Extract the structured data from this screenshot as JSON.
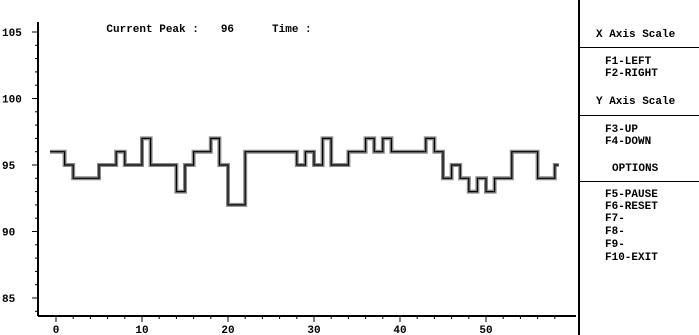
{
  "header": {
    "peak_label": "Current Peak :",
    "peak_value": "96",
    "time_label": "Time :"
  },
  "sidebar": {
    "x_axis_title": "X Axis Scale",
    "x_items": [
      "F1-LEFT",
      "F2-RIGHT"
    ],
    "y_axis_title": "Y Axis Scale",
    "y_items": [
      "F3-UP",
      "F4-DOWN"
    ],
    "options_title": "OPTIONS",
    "option_items": [
      "F5-PAUSE",
      "F6-RESET",
      "F7-",
      "F8-",
      "F9-",
      "F10-EXIT"
    ]
  },
  "chart_data": {
    "type": "line",
    "step": true,
    "title": "",
    "xlabel": "",
    "ylabel": "",
    "xlim": [
      -1.5,
      58.5
    ],
    "ylim": [
      84,
      105.5
    ],
    "xticks": [
      0,
      10,
      20,
      30,
      40,
      50
    ],
    "yticks": [
      85,
      90,
      95,
      100,
      105
    ],
    "grid": false,
    "series": [
      {
        "values": [
          {
            "x": 0,
            "y": 96
          },
          {
            "x": 1,
            "y": 95
          },
          {
            "x": 2,
            "y": 94
          },
          {
            "x": 5,
            "y": 95
          },
          {
            "x": 7,
            "y": 96
          },
          {
            "x": 8,
            "y": 95
          },
          {
            "x": 10,
            "y": 97
          },
          {
            "x": 11,
            "y": 95
          },
          {
            "x": 14,
            "y": 93
          },
          {
            "x": 15,
            "y": 95
          },
          {
            "x": 16,
            "y": 96
          },
          {
            "x": 18,
            "y": 97
          },
          {
            "x": 19,
            "y": 95
          },
          {
            "x": 20,
            "y": 92
          },
          {
            "x": 22,
            "y": 96
          },
          {
            "x": 28,
            "y": 95
          },
          {
            "x": 29,
            "y": 96
          },
          {
            "x": 30,
            "y": 95
          },
          {
            "x": 31,
            "y": 97
          },
          {
            "x": 32,
            "y": 95
          },
          {
            "x": 34,
            "y": 96
          },
          {
            "x": 36,
            "y": 97
          },
          {
            "x": 37,
            "y": 96
          },
          {
            "x": 38,
            "y": 97
          },
          {
            "x": 39,
            "y": 96
          },
          {
            "x": 43,
            "y": 97
          },
          {
            "x": 44,
            "y": 96
          },
          {
            "x": 45,
            "y": 94
          },
          {
            "x": 46,
            "y": 95
          },
          {
            "x": 47,
            "y": 94
          },
          {
            "x": 48,
            "y": 93
          },
          {
            "x": 49,
            "y": 94
          },
          {
            "x": 50,
            "y": 93
          },
          {
            "x": 51,
            "y": 94
          },
          {
            "x": 53,
            "y": 96
          },
          {
            "x": 56,
            "y": 94
          },
          {
            "x": 58,
            "y": 95
          }
        ]
      }
    ]
  }
}
